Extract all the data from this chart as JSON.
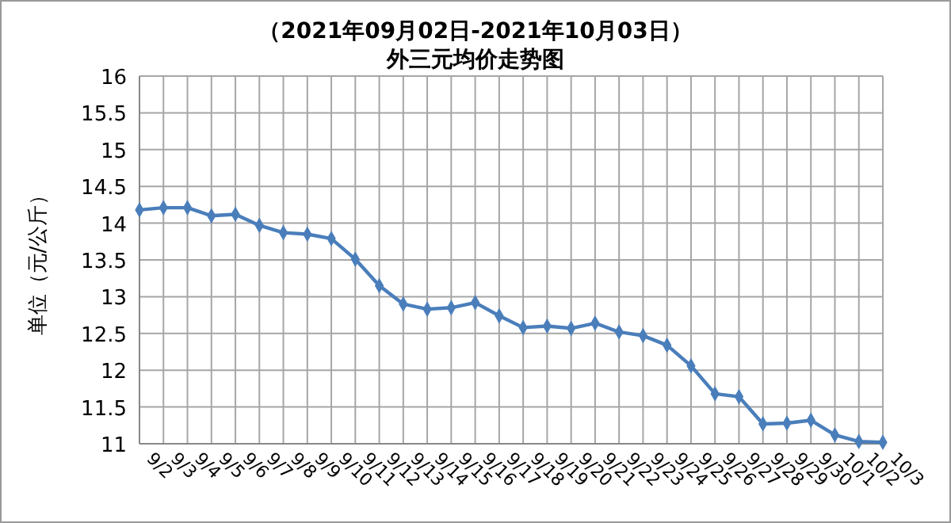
{
  "chart_data": {
    "type": "line",
    "title": "（2021年09月02日-2021年10月03日）",
    "subtitle": "外三元均价走势图",
    "ylabel": "单位（元/公斤）",
    "categories": [
      "9/2",
      "9/3",
      "9/4",
      "9/5",
      "9/6",
      "9/7",
      "9/8",
      "9/9",
      "9/10",
      "9/11",
      "9/12",
      "9/13",
      "9/14",
      "9/15",
      "9/16",
      "9/17",
      "9/18",
      "9/19",
      "9/20",
      "9/21",
      "9/22",
      "9/23",
      "9/24",
      "9/25",
      "9/26",
      "9/27",
      "9/28",
      "9/29",
      "9/30",
      "10/1",
      "10/2",
      "10/3"
    ],
    "series": [
      {
        "color": "#4a7ebb",
        "values": [
          14.18,
          14.21,
          14.21,
          14.1,
          14.12,
          13.97,
          13.87,
          13.85,
          13.79,
          13.51,
          13.15,
          12.9,
          12.83,
          12.85,
          12.92,
          12.74,
          12.58,
          12.6,
          12.57,
          12.64,
          12.52,
          12.47,
          12.34,
          12.06,
          11.68,
          11.64,
          11.27,
          11.28,
          11.32,
          11.12,
          11.03,
          11.02
        ]
      }
    ],
    "ylim": [
      11,
      16
    ],
    "yticks": [
      11,
      11.5,
      12,
      12.5,
      13,
      13.5,
      14,
      14.5,
      15,
      15.5,
      16
    ],
    "grid": true,
    "marker": "diamond"
  }
}
